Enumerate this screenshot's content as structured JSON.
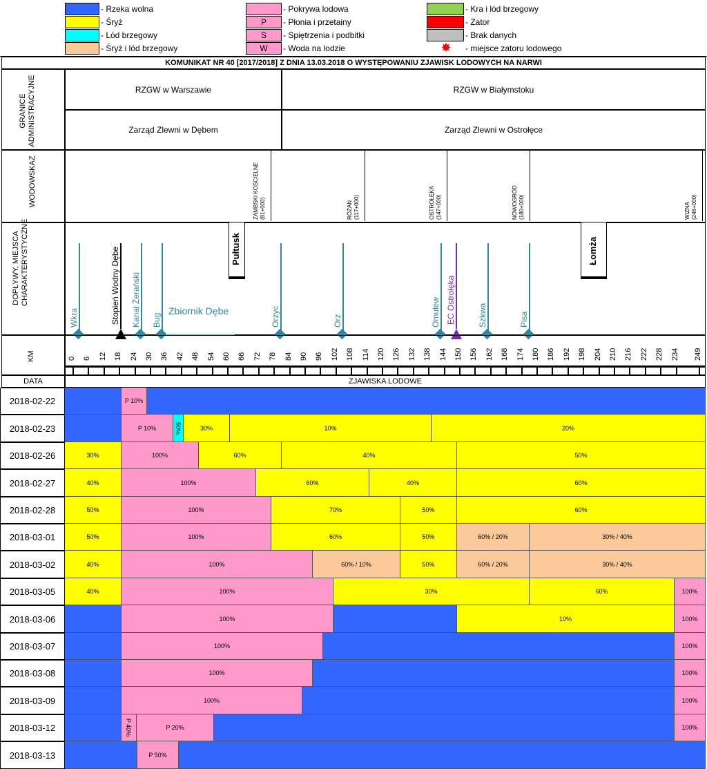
{
  "legend": {
    "items": [
      {
        "label": "- Rzeka wolna",
        "color": "#3366ff",
        "symbol": ""
      },
      {
        "label": "- Śryż",
        "color": "#ffff00",
        "symbol": ""
      },
      {
        "label": "- Lód brzegowy",
        "color": "#00ffff",
        "symbol": ""
      },
      {
        "label": "- Śryż i lód brzegowy",
        "color": "#fcc99b",
        "symbol": ""
      },
      {
        "label": "- Pokrywa lodowa",
        "color": "#ff99cc",
        "symbol": ""
      },
      {
        "label": "- Płonia i przetainy",
        "color": "#ff99cc",
        "symbol": "P"
      },
      {
        "label": "- Spiętrzenia i podbitki",
        "color": "#ff99cc",
        "symbol": "S"
      },
      {
        "label": "- Woda na lodzie",
        "color": "#ff99cc",
        "symbol": "W"
      },
      {
        "label": "- Kra i lód brzegowy",
        "color": "#92d050",
        "symbol": ""
      },
      {
        "label": "- Zator",
        "color": "#ff0000",
        "symbol": ""
      },
      {
        "label": "- Brak danych",
        "color": "#bfbfbf",
        "symbol": ""
      },
      {
        "label": "- miejsce zatoru lodowego",
        "color": "#ff0000",
        "symbol": "star"
      }
    ]
  },
  "title": "KOMUNIKAT NR 40 [2017/2018] Z DNIA 13.03.2018 O WYSTĘPOWANIU ZJAWISK LODOWYCH NA NARWI",
  "admin": {
    "label": "GRANICE ADMINISTRACYJNE",
    "rzgw_left": "RZGW w Warszawie",
    "rzgw_right": "RZGW w Białymstoku",
    "zz_left": "Zarząd Zlewni w Dębem",
    "zz_right": "Zarząd Zlewni w Ostrołęce"
  },
  "gauges": {
    "label": "WODOWSKAZ",
    "items": [
      {
        "name": "ZAMBSKI KOŚCIELNE",
        "km": "(81+000)"
      },
      {
        "name": "RÓŻAN",
        "km": "(117+000)"
      },
      {
        "name": "OSTROŁĘKA",
        "km": "(147+000)"
      },
      {
        "name": "NOWOGRÓD",
        "km": "(180+000)"
      },
      {
        "name": "WIZNA",
        "km": "(246+000)"
      }
    ]
  },
  "tributaries": {
    "label": "DOPŁYWY, MIEJSCA CHARAKTERYSTYCZNE",
    "items": [
      "Wkra",
      "Stopień Wodny Dębe",
      "Kanał Żerański",
      "Bug",
      "Zbiornik Dębe",
      "Orzyc",
      "Orz",
      "Omulew",
      "EC Ostrołęka",
      "Szkwa",
      "Pisa"
    ],
    "towns": [
      "Pułtusk",
      "Łomża"
    ]
  },
  "km": {
    "label": "KM",
    "ticks": [
      "0",
      "6",
      "12",
      "18",
      "24",
      "30",
      "36",
      "42",
      "48",
      "54",
      "60",
      "66",
      "72",
      "78",
      "84",
      "90",
      "96",
      "102",
      "108",
      "114",
      "120",
      "126",
      "132",
      "138",
      "144",
      "150",
      "156",
      "162",
      "168",
      "174",
      "180",
      "186",
      "192",
      "198",
      "204",
      "210",
      "216",
      "222",
      "228",
      "234",
      "249"
    ]
  },
  "data_header": {
    "date": "DATA",
    "phenomena": "ZJAWISKA LODOWE"
  },
  "rows": [
    {
      "date": "2018-02-22",
      "segs": [
        {
          "t": "",
          "c": "#3366ff",
          "w": 82
        },
        {
          "t": "P 10%",
          "c": "#ff99cc",
          "w": 37
        },
        {
          "t": "",
          "c": "#3366ff",
          "w": 811
        }
      ]
    },
    {
      "date": "2018-02-23",
      "segs": [
        {
          "t": "",
          "c": "#3366ff",
          "w": 82
        },
        {
          "t": "P 10%",
          "c": "#ff99cc",
          "w": 75
        },
        {
          "t": "50%",
          "c": "#00ffff",
          "w": 15,
          "v": true
        },
        {
          "t": "30%",
          "c": "#ffff00",
          "w": 67
        },
        {
          "t": "10%",
          "c": "#ffff00",
          "w": 292
        },
        {
          "t": "20%",
          "c": "#ffff00",
          "w": 399
        }
      ]
    },
    {
      "date": "2018-02-26",
      "segs": [
        {
          "t": "30%",
          "c": "#ffff00",
          "w": 82
        },
        {
          "t": "100%",
          "c": "#ff99cc",
          "w": 112
        },
        {
          "t": "60%",
          "c": "#ffff00",
          "w": 120
        },
        {
          "t": "40%",
          "c": "#ffff00",
          "w": 254
        },
        {
          "t": "50%",
          "c": "#ffff00",
          "w": 362
        }
      ]
    },
    {
      "date": "2018-02-27",
      "segs": [
        {
          "t": "40%",
          "c": "#ffff00",
          "w": 82
        },
        {
          "t": "100%",
          "c": "#ff99cc",
          "w": 195
        },
        {
          "t": "60%",
          "c": "#ffff00",
          "w": 164
        },
        {
          "t": "40%",
          "c": "#ffff00",
          "w": 127
        },
        {
          "t": "60%",
          "c": "#ffff00",
          "w": 362
        }
      ]
    },
    {
      "date": "2018-02-28",
      "segs": [
        {
          "t": "50%",
          "c": "#ffff00",
          "w": 82
        },
        {
          "t": "100%",
          "c": "#ff99cc",
          "w": 217
        },
        {
          "t": "70%",
          "c": "#ffff00",
          "w": 187
        },
        {
          "t": "50%",
          "c": "#ffff00",
          "w": 82
        },
        {
          "t": "60%",
          "c": "#ffff00",
          "w": 362
        }
      ]
    },
    {
      "date": "2018-03-01",
      "segs": [
        {
          "t": "50%",
          "c": "#ffff00",
          "w": 82
        },
        {
          "t": "100%",
          "c": "#ff99cc",
          "w": 217
        },
        {
          "t": "60%",
          "c": "#ffff00",
          "w": 187
        },
        {
          "t": "50%",
          "c": "#ffff00",
          "w": 82
        },
        {
          "t": "60% / 20%",
          "c": "#fcc99b",
          "w": 105
        },
        {
          "t": "30% / 40%",
          "c": "#fcc99b",
          "w": 257
        }
      ]
    },
    {
      "date": "2018-03-02",
      "segs": [
        {
          "t": "40%",
          "c": "#ffff00",
          "w": 82
        },
        {
          "t": "100%",
          "c": "#ff99cc",
          "w": 277
        },
        {
          "t": "60% / 10%",
          "c": "#fcc99b",
          "w": 127
        },
        {
          "t": "50%",
          "c": "#ffff00",
          "w": 82
        },
        {
          "t": "60% / 20%",
          "c": "#fcc99b",
          "w": 105
        },
        {
          "t": "30% / 40%",
          "c": "#fcc99b",
          "w": 257
        }
      ]
    },
    {
      "date": "2018-03-05",
      "segs": [
        {
          "t": "40%",
          "c": "#ffff00",
          "w": 82
        },
        {
          "t": "100%",
          "c": "#ff99cc",
          "w": 307
        },
        {
          "t": "30%",
          "c": "#ffff00",
          "w": 284
        },
        {
          "t": "60%",
          "c": "#ffff00",
          "w": 210
        },
        {
          "t": "100%",
          "c": "#ff99cc",
          "w": 47
        }
      ]
    },
    {
      "date": "2018-03-06",
      "segs": [
        {
          "t": "",
          "c": "#3366ff",
          "w": 82
        },
        {
          "t": "100%",
          "c": "#ff99cc",
          "w": 307
        },
        {
          "t": "",
          "c": "#3366ff",
          "w": 179
        },
        {
          "t": "10%",
          "c": "#ffff00",
          "w": 315
        },
        {
          "t": "100%",
          "c": "#ff99cc",
          "w": 47
        }
      ]
    },
    {
      "date": "2018-03-07",
      "segs": [
        {
          "t": "",
          "c": "#3366ff",
          "w": 82
        },
        {
          "t": "100%",
          "c": "#ff99cc",
          "w": 292
        },
        {
          "t": "",
          "c": "#3366ff",
          "w": 509
        },
        {
          "t": "100%",
          "c": "#ff99cc",
          "w": 47
        }
      ]
    },
    {
      "date": "2018-03-08",
      "segs": [
        {
          "t": "",
          "c": "#3366ff",
          "w": 82
        },
        {
          "t": "100%",
          "c": "#ff99cc",
          "w": 277
        },
        {
          "t": "",
          "c": "#3366ff",
          "w": 524
        },
        {
          "t": "100%",
          "c": "#ff99cc",
          "w": 47
        }
      ]
    },
    {
      "date": "2018-03-09",
      "segs": [
        {
          "t": "",
          "c": "#3366ff",
          "w": 82
        },
        {
          "t": "100%",
          "c": "#ff99cc",
          "w": 262
        },
        {
          "t": "",
          "c": "#3366ff",
          "w": 539
        },
        {
          "t": "100%",
          "c": "#ff99cc",
          "w": 47
        }
      ]
    },
    {
      "date": "2018-03-12",
      "segs": [
        {
          "t": "",
          "c": "#3366ff",
          "w": 82
        },
        {
          "t": "P 40%",
          "c": "#ff99cc",
          "w": 22,
          "v": true
        },
        {
          "t": "P 20%",
          "c": "#ff99cc",
          "w": 112
        },
        {
          "t": "",
          "c": "#3366ff",
          "w": 667
        },
        {
          "t": "100%",
          "c": "#ff99cc",
          "w": 47
        }
      ]
    },
    {
      "date": "2018-03-13",
      "segs": [
        {
          "t": "",
          "c": "#3366ff",
          "w": 105
        },
        {
          "t": "P 50%",
          "c": "#ff99cc",
          "w": 60
        },
        {
          "t": "",
          "c": "#3366ff",
          "w": 765
        }
      ]
    }
  ]
}
